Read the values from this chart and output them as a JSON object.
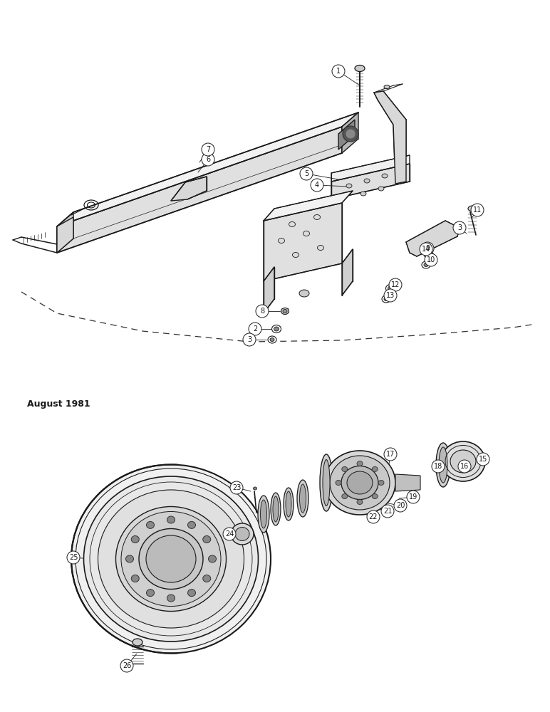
{
  "bg_color": "#ffffff",
  "line_color": "#1a1a1a",
  "lw": 1.0,
  "thin_lw": 0.6,
  "thick_lw": 1.4,
  "fs": 7.0,
  "date_text": "August 1981",
  "fig_width": 7.72,
  "fig_height": 10.0
}
